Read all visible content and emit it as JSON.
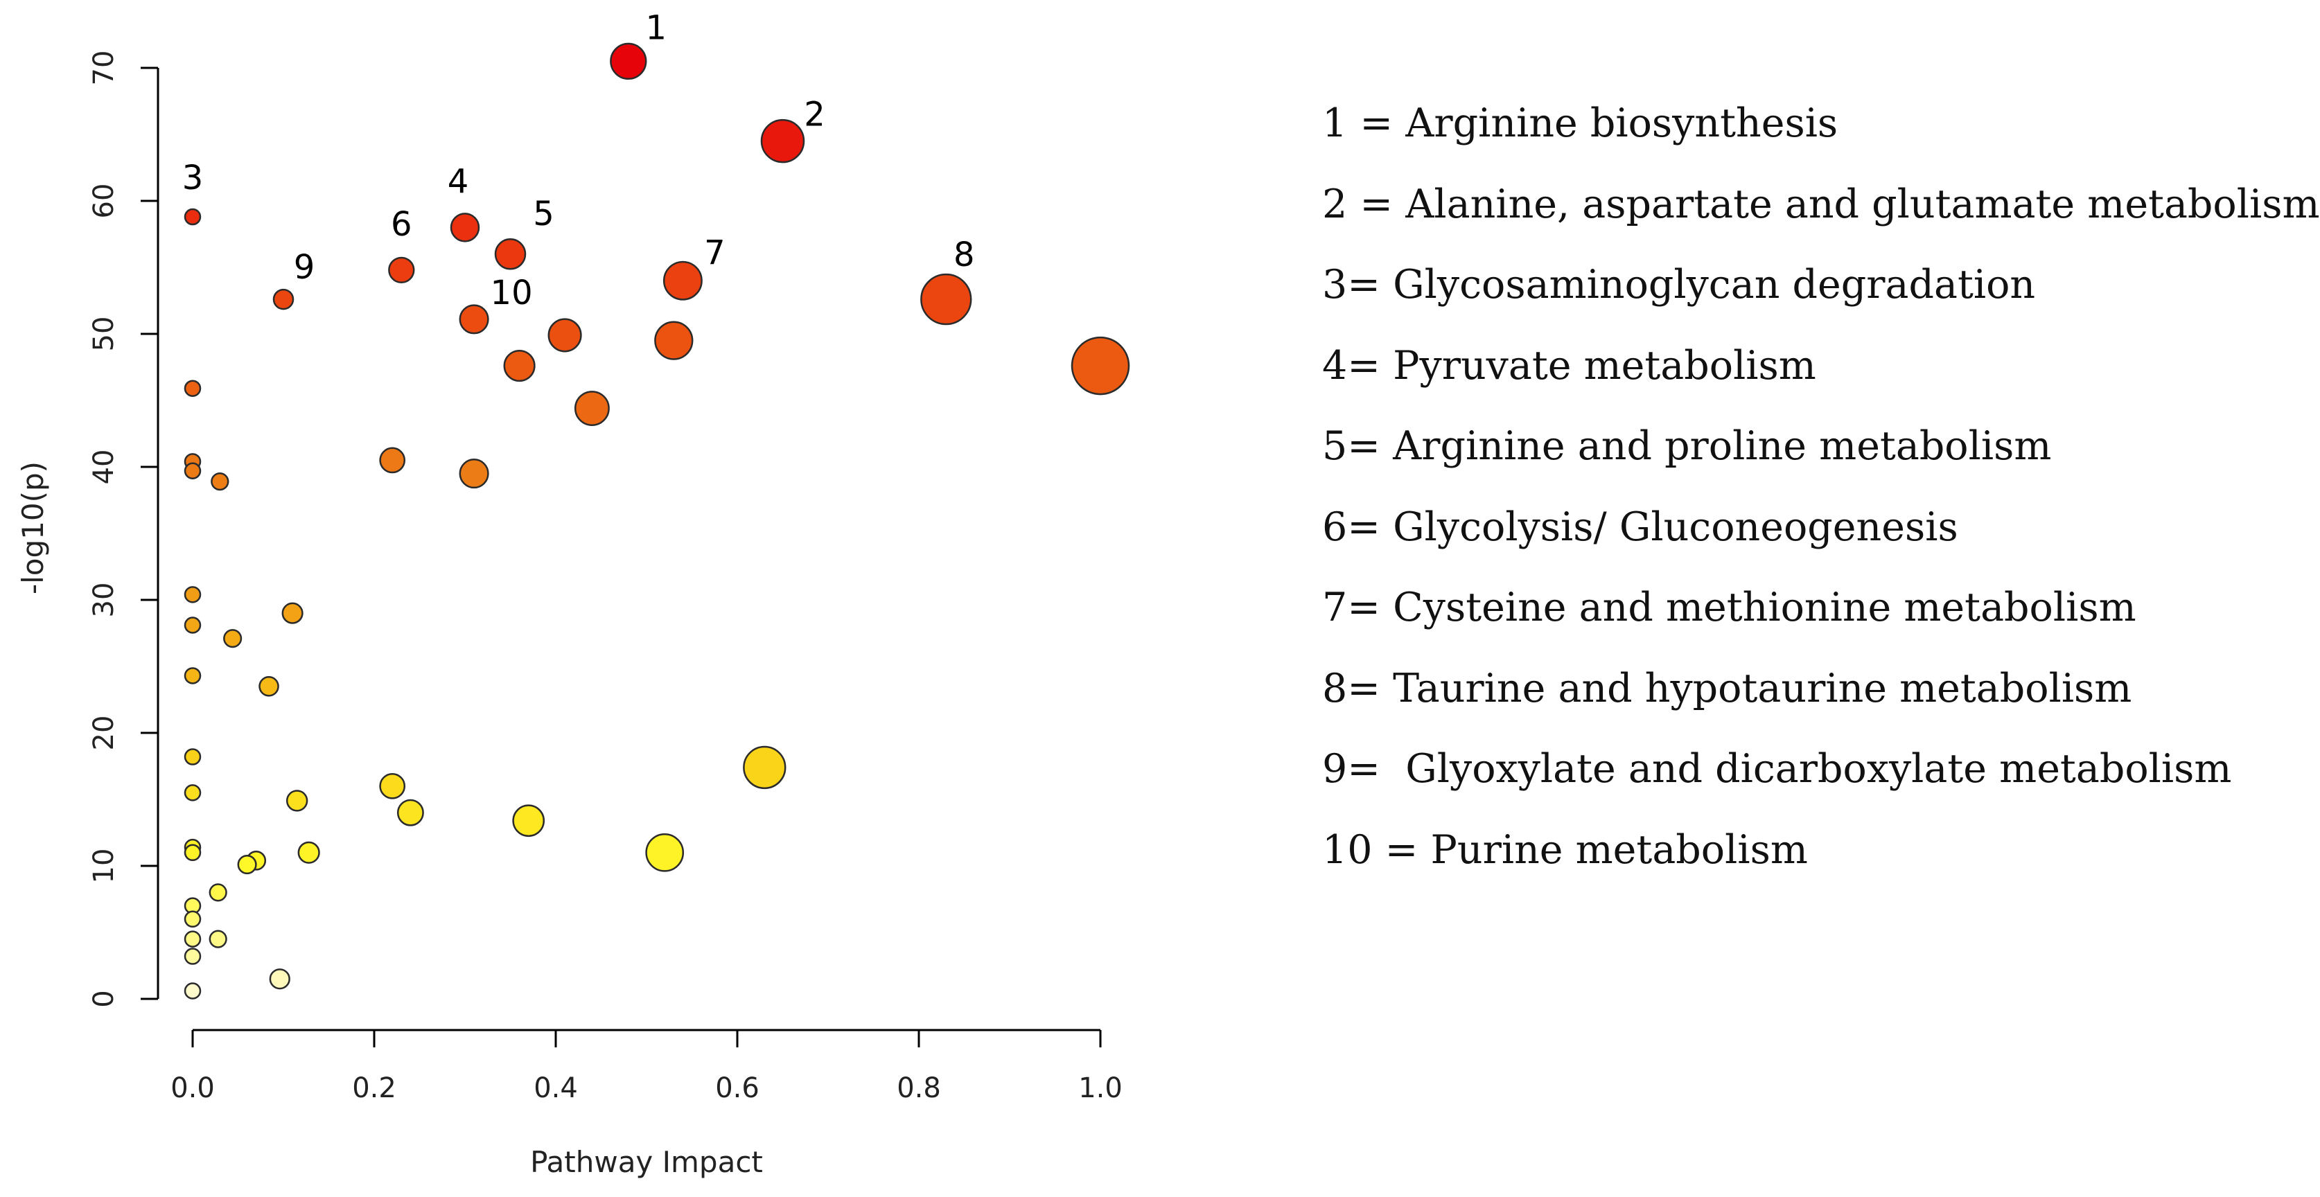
{
  "chart_data": {
    "type": "scatter",
    "xlabel": "Pathway Impact",
    "ylabel": "-log10(p)",
    "xlim": [
      0.0,
      1.0
    ],
    "ylim": [
      0,
      70
    ],
    "x_ticks": [
      "0.0",
      "0.2",
      "0.4",
      "0.6",
      "0.8",
      "1.0"
    ],
    "y_ticks": [
      "0",
      "10",
      "20",
      "30",
      "40",
      "50",
      "60",
      "70"
    ],
    "grid": false,
    "points": [
      {
        "label": "1",
        "x": 0.48,
        "y": 70.5,
        "impact_size": 0.48
      },
      {
        "label": "2",
        "x": 0.65,
        "y": 64.5,
        "impact_size": 0.65
      },
      {
        "label": "3",
        "x": 0.0,
        "y": 58.8,
        "impact_size": 0.0
      },
      {
        "label": "4",
        "x": 0.3,
        "y": 58.0,
        "impact_size": 0.3
      },
      {
        "label": "5",
        "x": 0.35,
        "y": 56.0,
        "impact_size": 0.35
      },
      {
        "label": "6",
        "x": 0.23,
        "y": 54.8,
        "impact_size": 0.23
      },
      {
        "label": "7",
        "x": 0.54,
        "y": 54.0,
        "impact_size": 0.54
      },
      {
        "label": "8",
        "x": 0.83,
        "y": 52.6,
        "impact_size": 0.83
      },
      {
        "label": "9",
        "x": 0.1,
        "y": 52.6,
        "impact_size": 0.1
      },
      {
        "label": "10",
        "x": 0.31,
        "y": 51.1,
        "impact_size": 0.31
      },
      {
        "label": "",
        "x": 0.41,
        "y": 49.9,
        "impact_size": 0.41
      },
      {
        "label": "",
        "x": 0.53,
        "y": 49.5,
        "impact_size": 0.53
      },
      {
        "label": "",
        "x": 1.0,
        "y": 47.6,
        "impact_size": 1.0
      },
      {
        "label": "",
        "x": 0.36,
        "y": 47.6,
        "impact_size": 0.36
      },
      {
        "label": "",
        "x": 0.0,
        "y": 45.9,
        "impact_size": 0.0
      },
      {
        "label": "",
        "x": 0.44,
        "y": 44.4,
        "impact_size": 0.44
      },
      {
        "label": "",
        "x": 0.22,
        "y": 40.5,
        "impact_size": 0.22
      },
      {
        "label": "",
        "x": 0.0,
        "y": 40.4,
        "impact_size": 0.0
      },
      {
        "label": "",
        "x": 0.0,
        "y": 39.7,
        "impact_size": 0.0
      },
      {
        "label": "",
        "x": 0.31,
        "y": 39.5,
        "impact_size": 0.31
      },
      {
        "label": "",
        "x": 0.03,
        "y": 38.9,
        "impact_size": 0.03
      },
      {
        "label": "",
        "x": 0.0,
        "y": 30.4,
        "impact_size": 0.0
      },
      {
        "label": "",
        "x": 0.11,
        "y": 29.0,
        "impact_size": 0.11
      },
      {
        "label": "",
        "x": 0.0,
        "y": 28.1,
        "impact_size": 0.0
      },
      {
        "label": "",
        "x": 0.044,
        "y": 27.1,
        "impact_size": 0.044
      },
      {
        "label": "",
        "x": 0.0,
        "y": 24.3,
        "impact_size": 0.0
      },
      {
        "label": "",
        "x": 0.084,
        "y": 23.5,
        "impact_size": 0.084
      },
      {
        "label": "",
        "x": 0.0,
        "y": 18.2,
        "impact_size": 0.0
      },
      {
        "label": "",
        "x": 0.63,
        "y": 17.4,
        "impact_size": 0.63
      },
      {
        "label": "",
        "x": 0.22,
        "y": 16.0,
        "impact_size": 0.22
      },
      {
        "label": "",
        "x": 0.0,
        "y": 15.5,
        "impact_size": 0.0
      },
      {
        "label": "",
        "x": 0.115,
        "y": 14.9,
        "impact_size": 0.115
      },
      {
        "label": "",
        "x": 0.24,
        "y": 14.0,
        "impact_size": 0.24
      },
      {
        "label": "",
        "x": 0.37,
        "y": 13.4,
        "impact_size": 0.37
      },
      {
        "label": "",
        "x": 0.0,
        "y": 11.4,
        "impact_size": 0.0
      },
      {
        "label": "",
        "x": 0.0,
        "y": 11.0,
        "impact_size": 0.0
      },
      {
        "label": "",
        "x": 0.52,
        "y": 11.0,
        "impact_size": 0.52
      },
      {
        "label": "",
        "x": 0.128,
        "y": 11.0,
        "impact_size": 0.128
      },
      {
        "label": "",
        "x": 0.07,
        "y": 10.4,
        "impact_size": 0.07
      },
      {
        "label": "",
        "x": 0.06,
        "y": 10.1,
        "impact_size": 0.06
      },
      {
        "label": "",
        "x": 0.028,
        "y": 8.0,
        "impact_size": 0.028
      },
      {
        "label": "",
        "x": 0.0,
        "y": 7.0,
        "impact_size": 0.0
      },
      {
        "label": "",
        "x": 0.0,
        "y": 6.0,
        "impact_size": 0.0
      },
      {
        "label": "",
        "x": 0.0,
        "y": 4.5,
        "impact_size": 0.0
      },
      {
        "label": "",
        "x": 0.028,
        "y": 4.5,
        "impact_size": 0.028
      },
      {
        "label": "",
        "x": 0.0,
        "y": 3.2,
        "impact_size": 0.0
      },
      {
        "label": "",
        "x": 0.096,
        "y": 1.5,
        "impact_size": 0.096
      },
      {
        "label": "",
        "x": 0.0,
        "y": 0.6,
        "impact_size": 0.0
      }
    ],
    "legend": [
      "1 = Arginine biosynthesis",
      "2 = Alanine, aspartate and glutamate metabolism",
      "3= Glycosaminoglycan degradation",
      "4= Pyruvate metabolism",
      "5= Arginine and proline metabolism",
      "6= Glycolysis/ Gluconeogenesis",
      "7= Cysteine and methionine metabolism",
      "8= Taurine and hypotaurine metabolism",
      "9=  Glyoxylate and dicarboxylate metabolism",
      "10 = Purine metabolism"
    ]
  }
}
